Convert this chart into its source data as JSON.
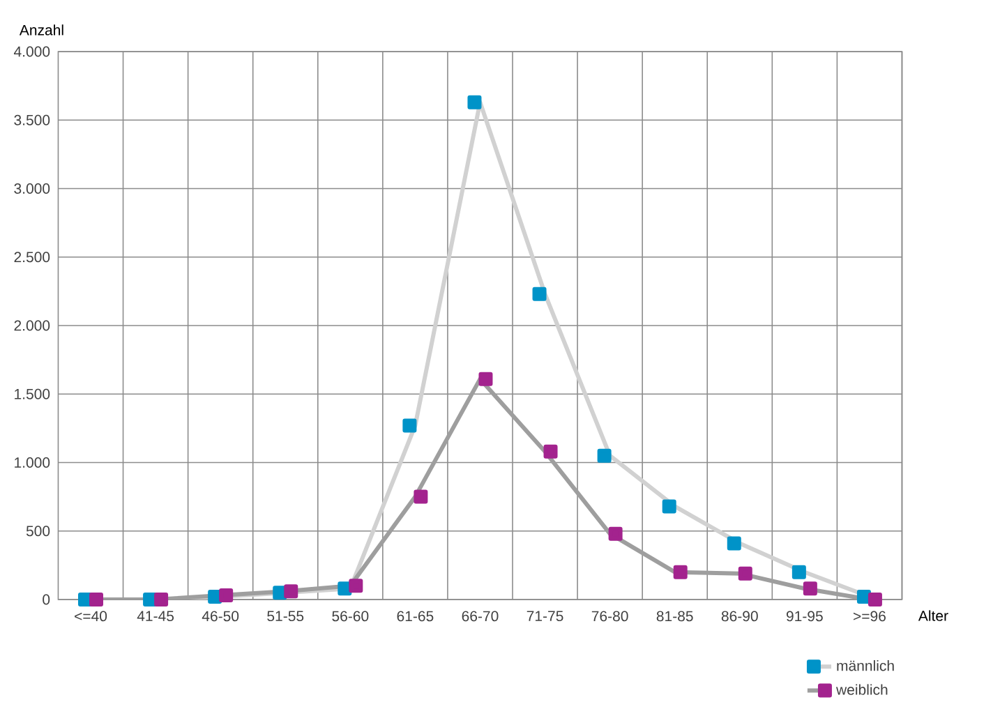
{
  "chart_data": {
    "type": "line",
    "xlabel": "Alter",
    "ylabel": "Anzahl",
    "categories": [
      "<=40",
      "41-45",
      "46-50",
      "51-55",
      "56-60",
      "61-65",
      "66-70",
      "71-75",
      "76-80",
      "81-85",
      "86-90",
      "91-95",
      ">=96"
    ],
    "series": [
      {
        "name": "männlich",
        "color": "#0093c8",
        "values": [
          0,
          0,
          20,
          50,
          80,
          1270,
          3630,
          2230,
          1050,
          680,
          410,
          200,
          20
        ]
      },
      {
        "name": "weiblich",
        "color": "#a3238e",
        "values": [
          0,
          0,
          30,
          60,
          100,
          750,
          1610,
          1080,
          480,
          200,
          190,
          80,
          0
        ]
      }
    ],
    "ylim": [
      0,
      4000
    ],
    "yticks": [
      0,
      500,
      {
        "value": 1000,
        "label": "1.000"
      },
      {
        "value": 1500,
        "label": "1.500"
      },
      {
        "value": 2000,
        "label": "2.000"
      },
      {
        "value": 2500,
        "label": "2.500"
      },
      {
        "value": 3000,
        "label": "3.000"
      },
      {
        "value": 3500,
        "label": "3.500"
      },
      {
        "value": 4000,
        "label": "4.000"
      }
    ],
    "grid": true,
    "legend": "bottom right",
    "marker": "square",
    "line_style": "solid"
  }
}
